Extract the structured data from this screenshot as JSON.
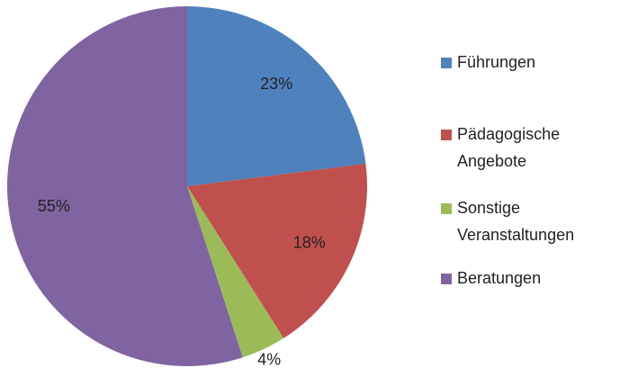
{
  "chart_data": {
    "type": "pie",
    "categories": [
      "Führungen",
      "Pädagogische Angebote",
      "Sonstige Veranstaltungen",
      "Beratungen"
    ],
    "values": [
      23,
      18,
      4,
      55
    ],
    "value_labels": [
      "23%",
      "18%",
      "4%",
      "55%"
    ],
    "colors": [
      "#4f81bd",
      "#c0504d",
      "#9bbb59",
      "#8064a2"
    ],
    "legend": "right"
  }
}
